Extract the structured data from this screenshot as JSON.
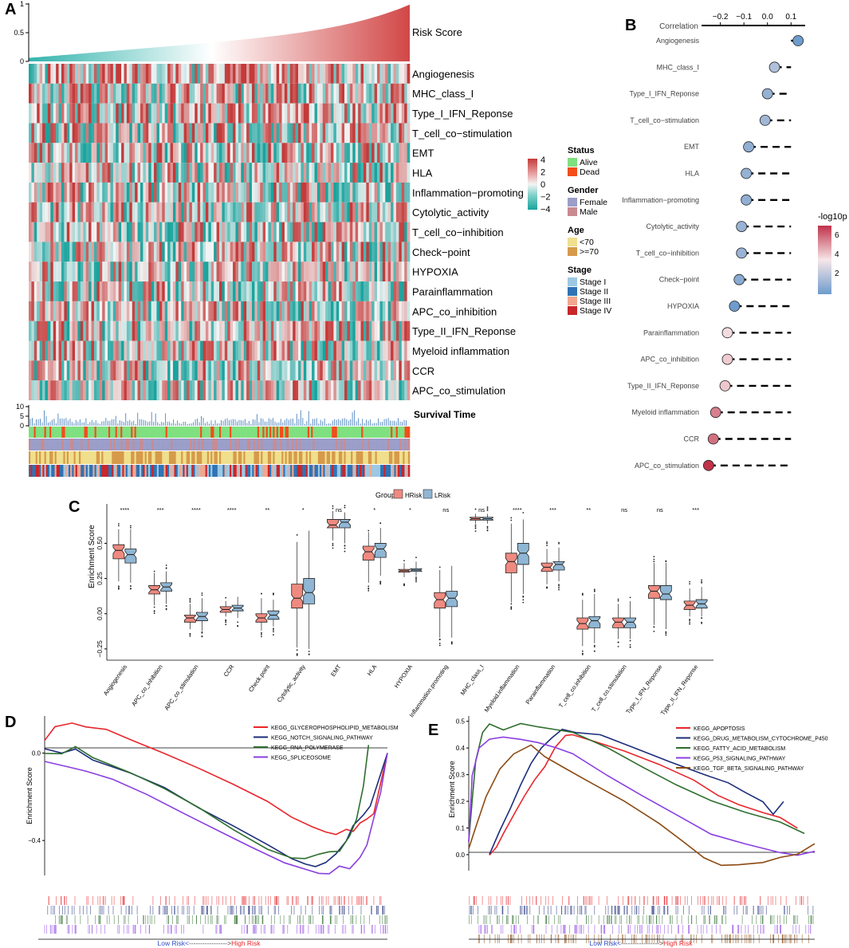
{
  "chart_data": [
    {
      "panel": "A",
      "type": "heatmap",
      "title": "",
      "top_track": {
        "label": "Risk Score",
        "ylim": [
          0,
          1
        ],
        "ticks": [
          "0",
          "0.5",
          "1"
        ],
        "trend": "monotonic increasing, sharp rise at high end"
      },
      "rows": [
        "Angiogenesis",
        "MHC_class_I",
        "Type_I_IFN_Reponse",
        "T_cell_co−stimulation",
        "EMT",
        "HLA",
        "Inflammation−promoting",
        "Cytolytic_activity",
        "T_cell_co−inhibition",
        "Check−point",
        "HYPOXIA",
        "Parainflammation",
        "APC_co_inhibition",
        "Type_II_IFN_Reponse",
        "Myeloid inflammation",
        "CCR",
        "APC_co_stimulation"
      ],
      "color_scale": {
        "ticks": [
          "4",
          "2",
          "0",
          "−2",
          "−4"
        ],
        "colors": [
          "#c43a3a",
          "#e8a3a3",
          "#f4f4f4",
          "#7fcfc9",
          "#1aa39d"
        ]
      },
      "survival_track": {
        "label": "Survival Time",
        "ticks": [
          "10",
          "5",
          "0"
        ]
      },
      "legend": [
        {
          "title": "Status",
          "items": [
            {
              "label": "Alive",
              "color": "#7fe07f"
            },
            {
              "label": "Dead",
              "color": "#f24d1a"
            }
          ]
        },
        {
          "title": "Gender",
          "items": [
            {
              "label": "Female",
              "color": "#9a9ec9"
            },
            {
              "label": "Male",
              "color": "#c98b90"
            }
          ]
        },
        {
          "title": "Age",
          "items": [
            {
              "label": "<70",
              "color": "#f0df8c"
            },
            {
              "label": ">=70",
              "color": "#d69a4a"
            }
          ]
        },
        {
          "title": "Stage",
          "items": [
            {
              "label": "Stage I",
              "color": "#9cc8e2"
            },
            {
              "label": "Stage II",
              "color": "#2f73b5"
            },
            {
              "label": "Stage III",
              "color": "#f2a68e"
            },
            {
              "label": "Stage IV",
              "color": "#c8262b"
            }
          ]
        }
      ]
    },
    {
      "panel": "B",
      "type": "scatter",
      "xlabel": "Correlation",
      "xticks": [
        -0.2,
        -0.1,
        0.0,
        0.1
      ],
      "xtick_labels": [
        "−0.2",
        "−0.1",
        "0.0",
        "0.1"
      ],
      "xlim": [
        -0.28,
        0.16
      ],
      "categories": [
        "Angiogenesis",
        "MHC_class_I",
        "Type_I_IFN_Reponse",
        "T_cell_co−stimulation",
        "EMT",
        "HLA",
        "Inflammation−promoting",
        "Cytolytic_activity",
        "T_cell_co−inhibition",
        "Check−point",
        "HYPOXIA",
        "Parainflammation",
        "APC_co_inhibition",
        "Type_II_IFN_Reponse",
        "Myeloid inflammation",
        "CCR",
        "APC_co_stimulation"
      ],
      "correlation": [
        0.13,
        0.03,
        0.0,
        -0.01,
        -0.08,
        -0.09,
        -0.09,
        -0.11,
        -0.11,
        -0.12,
        -0.14,
        -0.17,
        -0.17,
        -0.18,
        -0.22,
        -0.23,
        -0.25
      ],
      "neglog10p": [
        0.5,
        2.2,
        1.5,
        1.8,
        1.4,
        1.5,
        1.4,
        1.6,
        1.6,
        1.2,
        0.5,
        4.2,
        4.5,
        4.6,
        6.0,
        6.3,
        7.5
      ],
      "color_legend": {
        "title": "-log10p",
        "ticks": [
          "6",
          "4",
          "2"
        ],
        "range": [
          0.5,
          7.5
        ]
      }
    },
    {
      "panel": "C",
      "type": "box",
      "ylabel": "Enrichment Score",
      "yticks": [
        -0.25,
        0.0,
        0.25,
        0.5
      ],
      "ytick_labels": [
        "−0.25",
        "0.00",
        "0.25",
        "0.50"
      ],
      "ylim": [
        -0.33,
        0.78
      ],
      "legend": {
        "title": "Group",
        "items": [
          {
            "label": "HRisk",
            "color": "#ef8a80"
          },
          {
            "label": "LRisk",
            "color": "#8fb6d4"
          }
        ]
      },
      "categories": [
        "Angiogenesis",
        "APC_co_inhibition",
        "APC_co_stimulation",
        "CCR",
        "Check.point",
        "Cytolytic_activity",
        "EMT",
        "HLA",
        "HYPOXIA",
        "Inflammation.promoting",
        "MHC_class_I",
        "Myeloid.inflammation",
        "Parainflammation",
        "T_cell_co.inhibition",
        "T_cell_co.stimulation",
        "Type_I_IFN_Reponse",
        "Type_II_IFN_Reponse"
      ],
      "significance": [
        "****",
        "***",
        "****",
        "****",
        "**",
        "*",
        "ns",
        "*",
        "*",
        "ns",
        "ns",
        "****",
        "***",
        "**",
        "ns",
        "ns",
        "***"
      ],
      "series": [
        {
          "name": "HRisk",
          "q1": [
            0.39,
            0.14,
            -0.06,
            0.01,
            -0.06,
            0.04,
            0.61,
            0.38,
            0.295,
            0.04,
            0.665,
            0.29,
            0.3,
            -0.11,
            -0.1,
            0.11,
            0.03
          ],
          "median": [
            0.45,
            0.17,
            -0.03,
            0.03,
            -0.03,
            0.11,
            0.63,
            0.44,
            0.305,
            0.1,
            0.675,
            0.37,
            0.33,
            -0.07,
            -0.06,
            0.16,
            0.06
          ],
          "q3": [
            0.49,
            0.2,
            -0.01,
            0.05,
            0.0,
            0.21,
            0.67,
            0.48,
            0.315,
            0.15,
            0.685,
            0.43,
            0.36,
            -0.03,
            -0.03,
            0.2,
            0.09
          ],
          "lo": [
            0.23,
            0.06,
            -0.11,
            -0.02,
            -0.12,
            -0.24,
            0.52,
            0.22,
            0.26,
            -0.17,
            0.64,
            0.08,
            0.21,
            -0.23,
            -0.18,
            -0.08,
            -0.02
          ],
          "hi": [
            0.6,
            0.29,
            0.07,
            0.09,
            0.11,
            0.51,
            0.73,
            0.58,
            0.36,
            0.31,
            0.71,
            0.64,
            0.46,
            0.1,
            0.07,
            0.36,
            0.18
          ]
        },
        {
          "name": "LRisk",
          "q1": [
            0.36,
            0.16,
            -0.05,
            0.02,
            -0.04,
            0.07,
            0.61,
            0.4,
            0.3,
            0.05,
            0.665,
            0.35,
            0.31,
            -0.1,
            -0.1,
            0.1,
            0.04
          ],
          "median": [
            0.42,
            0.19,
            -0.02,
            0.04,
            -0.01,
            0.15,
            0.65,
            0.46,
            0.31,
            0.11,
            0.675,
            0.43,
            0.35,
            -0.05,
            -0.06,
            0.14,
            0.07
          ],
          "q3": [
            0.46,
            0.22,
            0.01,
            0.06,
            0.02,
            0.25,
            0.67,
            0.5,
            0.32,
            0.16,
            0.685,
            0.5,
            0.37,
            -0.02,
            -0.03,
            0.2,
            0.1
          ],
          "lo": [
            0.22,
            0.07,
            -0.12,
            -0.03,
            -0.09,
            -0.25,
            0.5,
            0.27,
            0.27,
            -0.17,
            0.64,
            0.14,
            0.23,
            -0.21,
            -0.18,
            -0.11,
            -0.02
          ],
          "hi": [
            0.6,
            0.3,
            0.11,
            0.12,
            0.1,
            0.59,
            0.72,
            0.61,
            0.37,
            0.34,
            0.71,
            0.67,
            0.47,
            0.14,
            0.09,
            0.36,
            0.19
          ]
        }
      ]
    },
    {
      "panel": "D",
      "type": "line",
      "ylabel": "Enrichment Score",
      "yticks": [
        0.0,
        -0.4
      ],
      "ytick_labels": [
        "0.0",
        "−0.4"
      ],
      "ylim": [
        -0.56,
        0.17
      ],
      "x_caption_low": "Low Risk<",
      "x_caption_arrow": "----------------->",
      "x_caption_high": "High Risk",
      "series": [
        {
          "name": "KEGG_GLYCEROPHOSPHOLIPID_METABOLISM",
          "color": "#e8262b",
          "x": [
            0,
            0.03,
            0.08,
            0.12,
            0.18,
            0.25,
            0.35,
            0.45,
            0.55,
            0.65,
            0.72,
            0.78,
            0.82,
            0.85,
            0.88,
            0.9,
            0.92,
            0.94,
            0.96,
            1.0
          ],
          "y": [
            0.06,
            0.12,
            0.14,
            0.12,
            0.11,
            0.06,
            0.0,
            -0.07,
            -0.14,
            -0.22,
            -0.29,
            -0.34,
            -0.36,
            -0.37,
            -0.35,
            -0.36,
            -0.32,
            -0.3,
            -0.28,
            0.0
          ]
        },
        {
          "name": "KEGG_NOTCH_SIGNALING_PATHWAY",
          "color": "#1c2d7a",
          "x": [
            0,
            0.05,
            0.09,
            0.14,
            0.25,
            0.35,
            0.45,
            0.55,
            0.65,
            0.72,
            0.76,
            0.79,
            0.82,
            0.85,
            0.88,
            0.9,
            0.93,
            0.95,
            1.0
          ],
          "y": [
            0.02,
            0.0,
            0.02,
            -0.03,
            -0.09,
            -0.16,
            -0.25,
            -0.33,
            -0.42,
            -0.48,
            -0.51,
            -0.52,
            -0.5,
            -0.46,
            -0.4,
            -0.33,
            -0.28,
            -0.24,
            0.0
          ]
        },
        {
          "name": "KEGG_RNA_POLYMERASE",
          "color": "#2e6e2e",
          "x": [
            0,
            0.05,
            0.09,
            0.14,
            0.25,
            0.35,
            0.45,
            0.55,
            0.65,
            0.72,
            0.76,
            0.8,
            0.83,
            0.86,
            0.89,
            0.91,
            0.93,
            0.945
          ],
          "y": [
            0.0,
            0.0,
            0.03,
            -0.02,
            -0.09,
            -0.16,
            -0.25,
            -0.35,
            -0.44,
            -0.48,
            -0.48,
            -0.46,
            -0.45,
            -0.45,
            -0.38,
            -0.3,
            -0.15,
            0.04
          ]
        },
        {
          "name": "KEGG_SPLICEOSOME",
          "color": "#8a3fe0",
          "x": [
            0,
            0.06,
            0.12,
            0.2,
            0.3,
            0.4,
            0.5,
            0.6,
            0.7,
            0.76,
            0.8,
            0.83,
            0.86,
            0.89,
            0.92,
            0.94,
            0.96,
            0.98,
            1.0
          ],
          "y": [
            -0.04,
            -0.06,
            -0.08,
            -0.12,
            -0.19,
            -0.27,
            -0.35,
            -0.43,
            -0.5,
            -0.53,
            -0.55,
            -0.55,
            -0.52,
            -0.53,
            -0.48,
            -0.42,
            -0.3,
            -0.18,
            0.0
          ]
        }
      ]
    },
    {
      "panel": "E",
      "type": "line",
      "ylabel": "Enrichment Score",
      "yticks": [
        0.0,
        0.1,
        0.2,
        0.3,
        0.4,
        0.5
      ],
      "ytick_labels": [
        "0.0",
        "0.1",
        "0.2",
        "0.3",
        "0.4",
        "0.5"
      ],
      "ylim": [
        -0.06,
        0.52
      ],
      "x_caption_low": "Low Risk<",
      "x_caption_arrow": "----------------->",
      "x_caption_high": "High Risk",
      "series": [
        {
          "name": "KEGG_APOPTOSIS",
          "color": "#e8262b",
          "x": [
            0.06,
            0.08,
            0.1,
            0.13,
            0.16,
            0.19,
            0.22,
            0.25,
            0.28,
            0.3,
            0.35,
            0.45,
            0.55,
            0.65,
            0.72,
            0.78,
            0.85,
            0.9,
            0.95
          ],
          "y": [
            0.0,
            0.03,
            0.08,
            0.15,
            0.22,
            0.28,
            0.33,
            0.4,
            0.45,
            0.45,
            0.43,
            0.39,
            0.34,
            0.28,
            0.22,
            0.19,
            0.16,
            0.14,
            0.1
          ]
        },
        {
          "name": "KEGG_DRUG_METABOLISM_CYTOCHROME_P450",
          "color": "#1c2d7a",
          "x": [
            0.06,
            0.09,
            0.12,
            0.15,
            0.18,
            0.21,
            0.24,
            0.27,
            0.31,
            0.38,
            0.48,
            0.58,
            0.68,
            0.75,
            0.8,
            0.85,
            0.88,
            0.91
          ],
          "y": [
            0.0,
            0.09,
            0.17,
            0.26,
            0.34,
            0.4,
            0.44,
            0.47,
            0.46,
            0.45,
            0.4,
            0.35,
            0.3,
            0.27,
            0.23,
            0.2,
            0.15,
            0.2
          ]
        },
        {
          "name": "KEGG_FATTY_ACID_METABOLISM",
          "color": "#2e6e2e",
          "x": [
            0.0,
            0.01,
            0.02,
            0.04,
            0.06,
            0.1,
            0.15,
            0.2,
            0.25,
            0.3,
            0.4,
            0.5,
            0.6,
            0.7,
            0.8,
            0.9,
            0.97
          ],
          "y": [
            0.05,
            0.2,
            0.35,
            0.46,
            0.49,
            0.47,
            0.49,
            0.48,
            0.47,
            0.46,
            0.4,
            0.33,
            0.26,
            0.2,
            0.16,
            0.12,
            0.08
          ]
        },
        {
          "name": "KEGG_P53_SIGNALING_PATHWAY",
          "color": "#8a3fe0",
          "x": [
            0.0,
            0.01,
            0.03,
            0.06,
            0.1,
            0.15,
            0.2,
            0.25,
            0.3,
            0.4,
            0.5,
            0.6,
            0.7,
            0.8,
            0.9,
            0.95,
            1.0
          ],
          "y": [
            0.05,
            0.3,
            0.4,
            0.43,
            0.44,
            0.43,
            0.42,
            0.4,
            0.38,
            0.3,
            0.22,
            0.15,
            0.08,
            0.04,
            0.01,
            0.0,
            0.01
          ]
        },
        {
          "name": "KEGG_TGF_BETA_SIGNALING_PATHWAY",
          "color": "#8c4a12",
          "x": [
            0.0,
            0.02,
            0.05,
            0.09,
            0.13,
            0.18,
            0.22,
            0.28,
            0.35,
            0.45,
            0.55,
            0.62,
            0.68,
            0.73,
            0.78,
            0.85,
            0.9,
            0.95,
            1.0
          ],
          "y": [
            0.02,
            0.1,
            0.22,
            0.32,
            0.38,
            0.41,
            0.37,
            0.32,
            0.27,
            0.2,
            0.12,
            0.05,
            -0.01,
            -0.04,
            -0.04,
            -0.03,
            -0.01,
            0.0,
            0.04
          ]
        }
      ]
    }
  ],
  "panels": {
    "a": "A",
    "b": "B",
    "c": "C",
    "d": "D",
    "e": "E"
  }
}
